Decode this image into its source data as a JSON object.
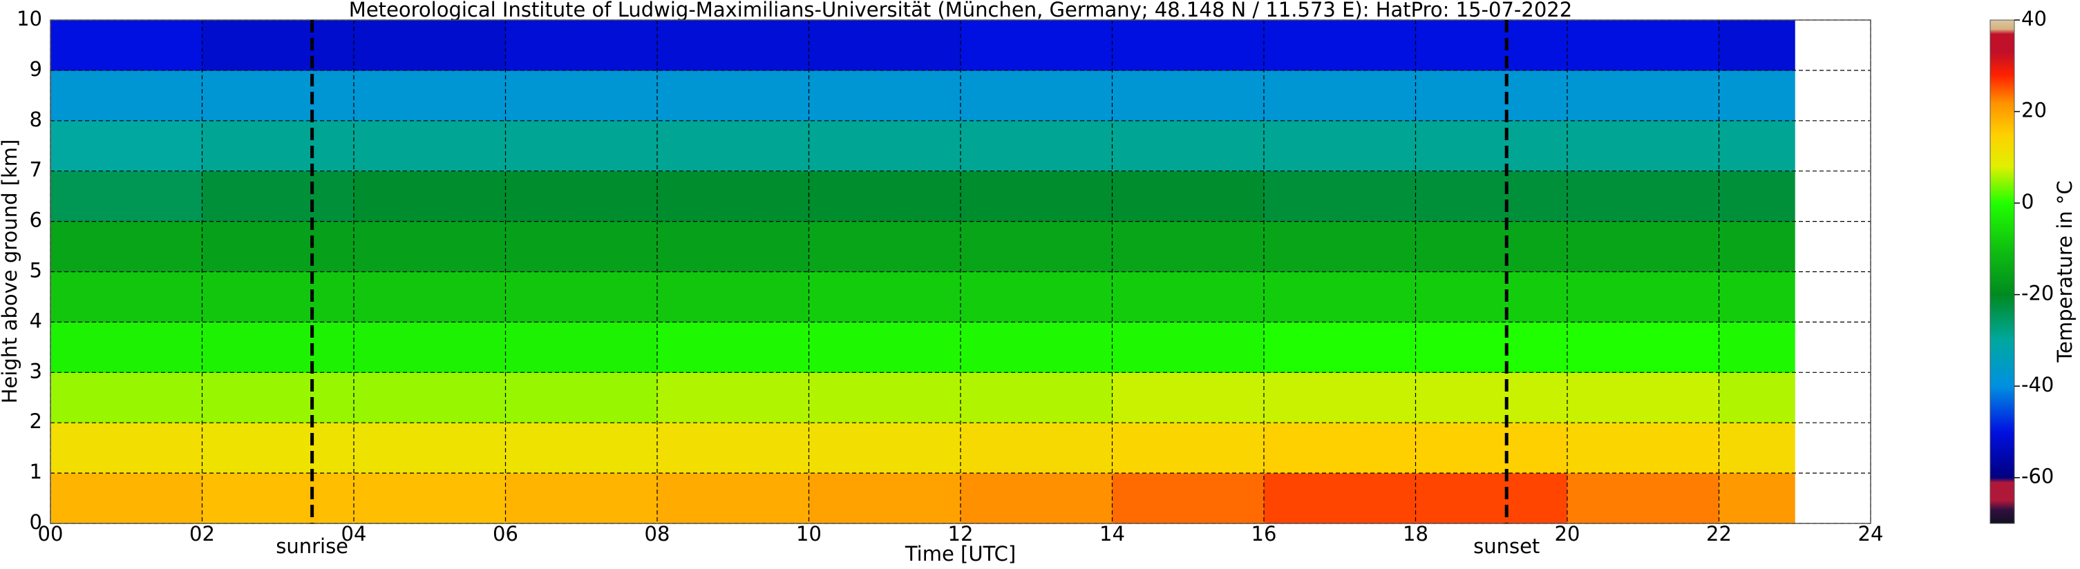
{
  "chart_data": {
    "type": "heatmap",
    "title": "Meteorological Institute of Ludwig-Maximilians-Universität (München, Germany; 48.148 N / 11.573 E):    HatPro: 15-07-2022",
    "xlabel": "Time [UTC]",
    "ylabel": "Height above ground [km]",
    "x_edges": [
      0,
      2,
      4,
      6,
      8,
      10,
      12,
      14,
      16,
      18,
      20,
      22,
      23
    ],
    "y_edges": [
      0,
      1,
      2,
      3,
      4,
      5,
      6,
      7,
      8,
      9,
      10
    ],
    "values": [
      [
        18,
        17,
        17,
        18,
        19,
        20,
        22,
        24,
        26,
        26,
        23,
        21
      ],
      [
        12,
        11,
        11,
        11,
        12,
        12,
        13,
        14,
        15,
        15,
        14,
        13
      ],
      [
        5,
        5,
        5,
        5,
        6,
        6,
        6,
        7,
        7,
        7,
        7,
        6
      ],
      [
        -2,
        -2,
        -2,
        -2,
        -1,
        -1,
        -1,
        -1,
        0,
        0,
        0,
        -1
      ],
      [
        -9,
        -9,
        -9,
        -9,
        -9,
        -8,
        -8,
        -8,
        -8,
        -8,
        -8,
        -8
      ],
      [
        -15,
        -16,
        -16,
        -16,
        -16,
        -15,
        -15,
        -15,
        -15,
        -15,
        -15,
        -15
      ],
      [
        -24,
        -22,
        -21,
        -21,
        -21,
        -21,
        -21,
        -21,
        -22,
        -22,
        -22,
        -22
      ],
      [
        -30,
        -29,
        -29,
        -29,
        -29,
        -29,
        -29,
        -29,
        -29,
        -29,
        -29,
        -29
      ],
      [
        -38,
        -38,
        -38,
        -38,
        -38,
        -38,
        -38,
        -38,
        -38,
        -38,
        -38,
        -38
      ],
      [
        -50,
        -52,
        -52,
        -51,
        -51,
        -51,
        -50,
        -50,
        -50,
        -50,
        -50,
        -51
      ]
    ],
    "xlim": [
      0,
      24
    ],
    "ylim": [
      0,
      10
    ],
    "xticks": [
      {
        "value": 0,
        "label": "00"
      },
      {
        "value": 2,
        "label": "02"
      },
      {
        "value": 4,
        "label": "04"
      },
      {
        "value": 6,
        "label": "06"
      },
      {
        "value": 8,
        "label": "08"
      },
      10,
      12,
      14,
      16,
      18,
      20,
      22,
      24
    ],
    "yticks": [
      0,
      1,
      2,
      3,
      4,
      5,
      6,
      7,
      8,
      9,
      10
    ],
    "grid": true,
    "annotations": [
      {
        "text": "sunrise",
        "x": 3.45
      },
      {
        "text": "sunset",
        "x": 19.2
      }
    ],
    "colorbar": {
      "label": "Temperature in °C",
      "lim": [
        -70,
        40
      ],
      "ticks": [
        -60,
        -40,
        -20,
        0,
        20,
        40
      ],
      "stops": [
        {
          "value": -70,
          "color": "#101020"
        },
        {
          "value": -67,
          "color": "#301040"
        },
        {
          "value": -65,
          "color": "#b0183a"
        },
        {
          "value": -61,
          "color": "#b0183a"
        },
        {
          "value": -60,
          "color": "#000080"
        },
        {
          "value": -50,
          "color": "#0010e0"
        },
        {
          "value": -40,
          "color": "#0090e0"
        },
        {
          "value": -30,
          "color": "#00a8a0"
        },
        {
          "value": -20,
          "color": "#008a20"
        },
        {
          "value": -10,
          "color": "#10c010"
        },
        {
          "value": 0,
          "color": "#20ff00"
        },
        {
          "value": 8,
          "color": "#e0f000"
        },
        {
          "value": 15,
          "color": "#ffd000"
        },
        {
          "value": 22,
          "color": "#ff9000"
        },
        {
          "value": 28,
          "color": "#ff2000"
        },
        {
          "value": 33,
          "color": "#c0102a"
        },
        {
          "value": 37,
          "color": "#c0102a"
        },
        {
          "value": 38,
          "color": "#d8b080"
        },
        {
          "value": 40,
          "color": "#d8c8a0"
        }
      ]
    }
  }
}
